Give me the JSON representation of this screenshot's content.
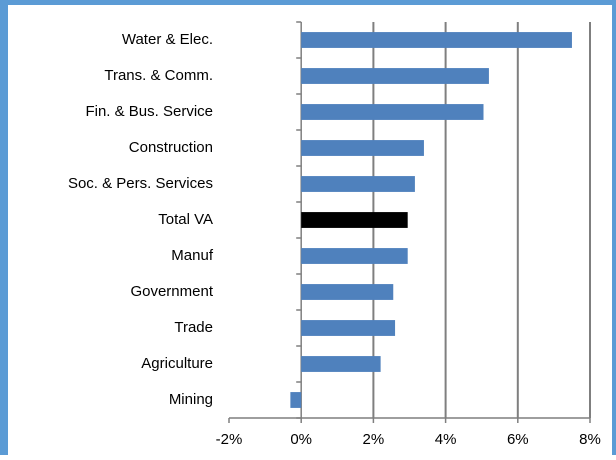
{
  "chart_data": {
    "type": "barh",
    "categories": [
      "Water & Elec.",
      "Trans. & Comm.",
      "Fin. & Bus. Service",
      "Construction",
      "Soc. & Pers. Services",
      "Total VA",
      "Manuf",
      "Government",
      "Trade",
      "Agriculture",
      "Mining"
    ],
    "values": [
      7.5,
      5.2,
      5.05,
      3.4,
      3.15,
      2.95,
      2.95,
      2.55,
      2.6,
      2.2,
      -0.3
    ],
    "colors": [
      "#4f81bd",
      "#4f81bd",
      "#4f81bd",
      "#4f81bd",
      "#4f81bd",
      "#000000",
      "#4f81bd",
      "#4f81bd",
      "#4f81bd",
      "#4f81bd",
      "#4f81bd"
    ],
    "xlim": [
      -2,
      8
    ],
    "xticks": [
      {
        "value": -2,
        "label": "-2%"
      },
      {
        "value": 0,
        "label": "0%"
      },
      {
        "value": 2,
        "label": "2%"
      },
      {
        "value": 4,
        "label": "4%"
      },
      {
        "value": 6,
        "label": "6%"
      },
      {
        "value": 8,
        "label": "8%"
      }
    ],
    "grid": true
  }
}
